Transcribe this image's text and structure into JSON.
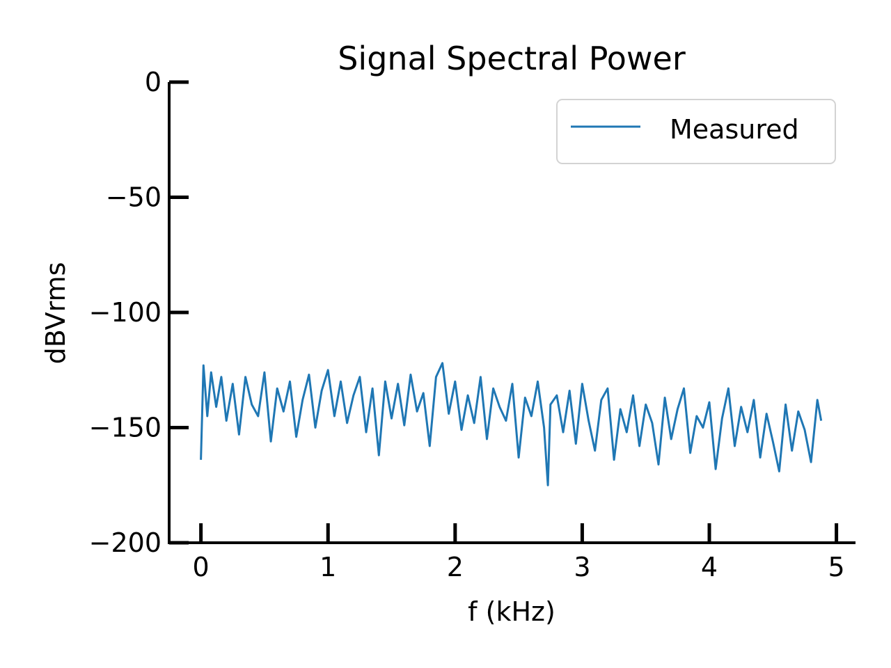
{
  "chart_data": {
    "type": "line",
    "title": "Signal Spectral Power",
    "xlabel": "f (kHz)",
    "ylabel": "dBVrms",
    "xlim": [
      -0.25,
      5.15
    ],
    "ylim": [
      -200,
      0
    ],
    "x_ticks": [
      0,
      1,
      2,
      3,
      4,
      5
    ],
    "x_tick_labels": [
      "0",
      "1",
      "2",
      "3",
      "4",
      "5"
    ],
    "y_ticks": [
      0,
      -50,
      -100,
      -150,
      -200
    ],
    "y_tick_labels": [
      "0",
      "−50",
      "−100",
      "−150",
      "−200"
    ],
    "grid": false,
    "legend_position": "top-right",
    "series": [
      {
        "name": "Measured",
        "color": "#1f77b4",
        "x": [
          0.0,
          0.02,
          0.05,
          0.08,
          0.12,
          0.16,
          0.2,
          0.25,
          0.3,
          0.35,
          0.4,
          0.45,
          0.5,
          0.55,
          0.6,
          0.65,
          0.7,
          0.75,
          0.8,
          0.85,
          0.9,
          0.95,
          1.0,
          1.05,
          1.1,
          1.15,
          1.2,
          1.25,
          1.3,
          1.35,
          1.4,
          1.45,
          1.5,
          1.55,
          1.6,
          1.65,
          1.7,
          1.75,
          1.8,
          1.85,
          1.9,
          1.95,
          2.0,
          2.05,
          2.1,
          2.15,
          2.2,
          2.25,
          2.3,
          2.35,
          2.4,
          2.45,
          2.5,
          2.55,
          2.6,
          2.65,
          2.7,
          2.73,
          2.75,
          2.8,
          2.85,
          2.9,
          2.95,
          3.0,
          3.05,
          3.1,
          3.15,
          3.2,
          3.25,
          3.3,
          3.35,
          3.4,
          3.45,
          3.5,
          3.55,
          3.6,
          3.65,
          3.7,
          3.75,
          3.8,
          3.85,
          3.9,
          3.95,
          4.0,
          4.05,
          4.1,
          4.15,
          4.2,
          4.25,
          4.3,
          4.35,
          4.4,
          4.45,
          4.5,
          4.55,
          4.6,
          4.65,
          4.7,
          4.75,
          4.8,
          4.85,
          4.88
        ],
        "y": [
          -164,
          -123,
          -145,
          -126,
          -141,
          -128,
          -147,
          -131,
          -153,
          -128,
          -140,
          -145,
          -126,
          -156,
          -133,
          -143,
          -130,
          -154,
          -138,
          -127,
          -150,
          -134,
          -125,
          -145,
          -130,
          -148,
          -136,
          -128,
          -152,
          -133,
          -162,
          -130,
          -146,
          -131,
          -149,
          -127,
          -143,
          -135,
          -158,
          -128,
          -122,
          -144,
          -130,
          -151,
          -136,
          -148,
          -128,
          -155,
          -133,
          -141,
          -147,
          -131,
          -163,
          -137,
          -145,
          -130,
          -150,
          -175,
          -140,
          -136,
          -152,
          -134,
          -157,
          -131,
          -147,
          -160,
          -138,
          -133,
          -164,
          -142,
          -152,
          -136,
          -158,
          -140,
          -148,
          -166,
          -137,
          -155,
          -142,
          -133,
          -161,
          -145,
          -150,
          -139,
          -168,
          -146,
          -133,
          -158,
          -141,
          -152,
          -138,
          -163,
          -144,
          -156,
          -169,
          -140,
          -160,
          -143,
          -151,
          -165,
          -138,
          -147
        ]
      }
    ]
  }
}
